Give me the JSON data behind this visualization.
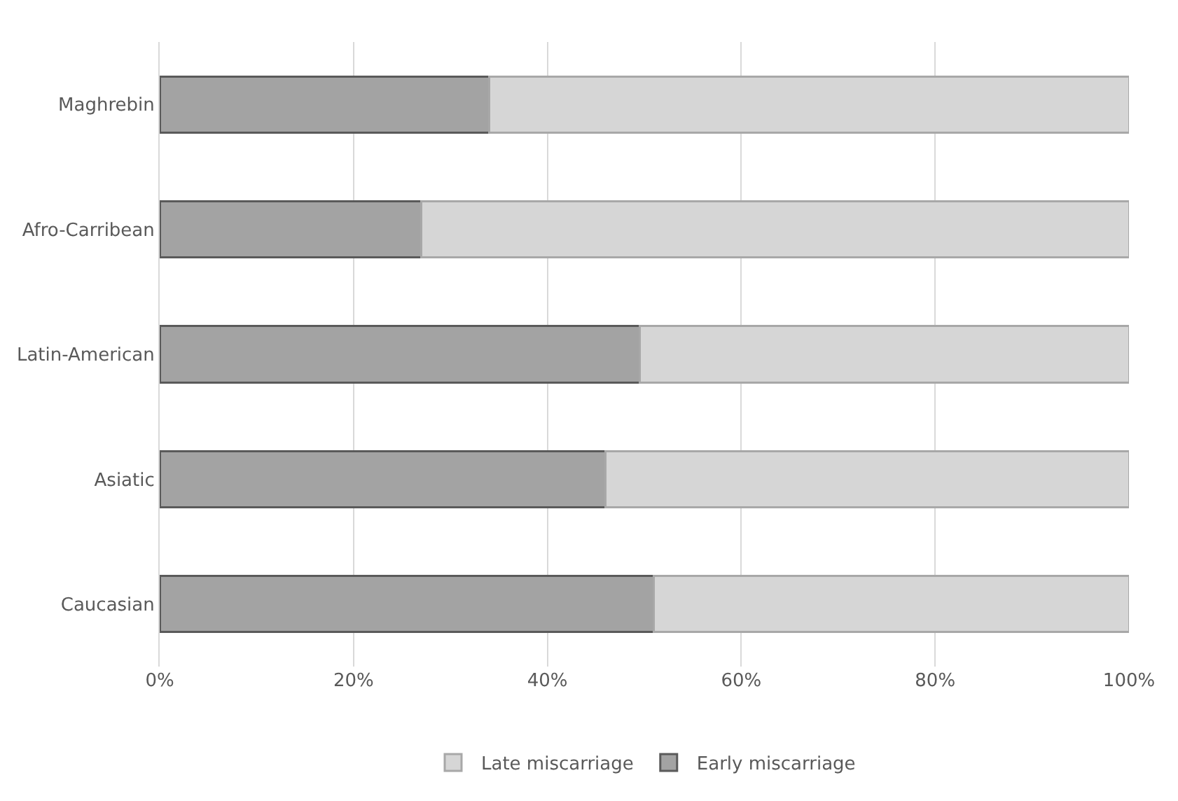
{
  "chart_data": {
    "type": "bar",
    "orientation": "horizontal",
    "stacked": true,
    "categories": [
      "Maghrebin",
      "Afro-Carribean",
      "Latin-American",
      "Asiatic",
      "Caucasian"
    ],
    "series": [
      {
        "name": "Early miscarriage",
        "color": "#a3a3a3",
        "values": [
          34,
          27,
          49.5,
          46,
          51
        ]
      },
      {
        "name": "Late miscarriage",
        "color": "#d6d6d6",
        "values": [
          66,
          73,
          50.5,
          54,
          49
        ]
      }
    ],
    "xlim": [
      0,
      100
    ],
    "xticks": [
      {
        "value": 0,
        "label": "0%"
      },
      {
        "value": 20,
        "label": "20%"
      },
      {
        "value": 40,
        "label": "40%"
      },
      {
        "value": 60,
        "label": "60%"
      },
      {
        "value": 80,
        "label": "80%"
      },
      {
        "value": 100,
        "label": "100%"
      }
    ],
    "grid": "x",
    "legend": "bottom"
  }
}
